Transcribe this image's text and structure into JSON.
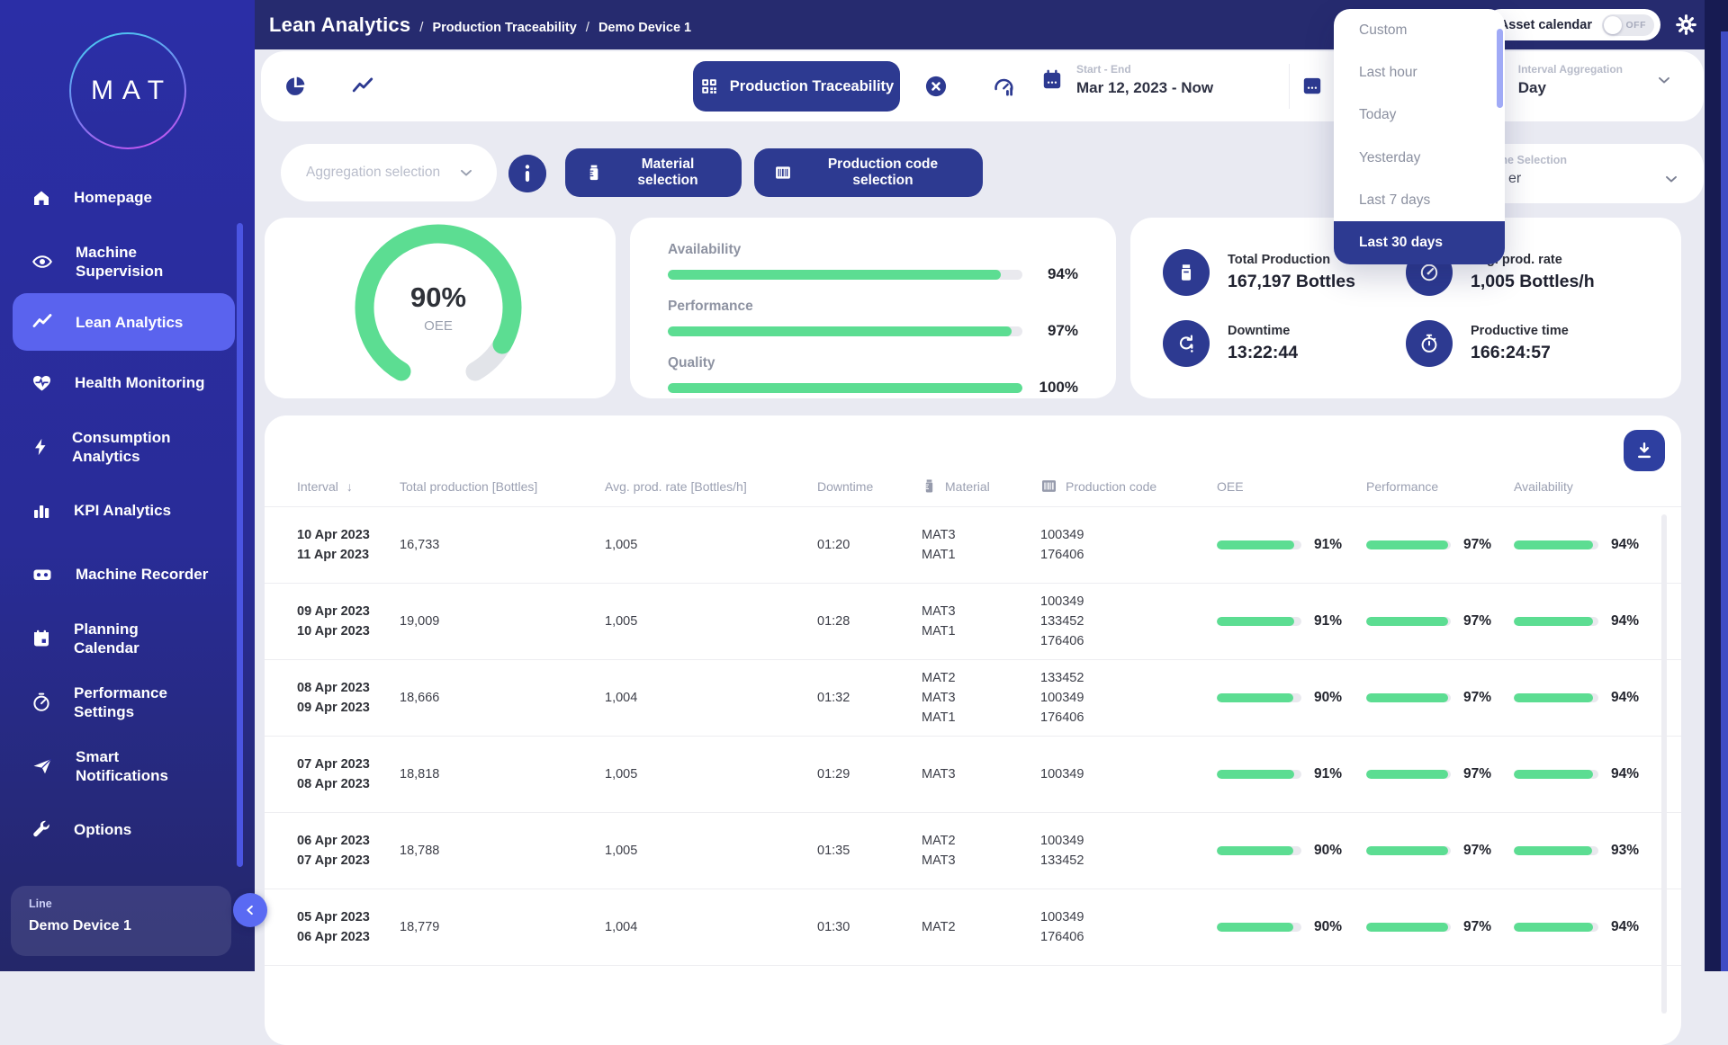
{
  "header": {
    "title": "Lean Analytics",
    "separator": "/",
    "breadcrumbs": [
      "Production Traceability",
      "Demo Device 1"
    ],
    "asset_calendar": {
      "label": "Asset calendar",
      "state": "OFF"
    }
  },
  "sidebar": {
    "logo": "MAT",
    "items": [
      {
        "label": "Homepage",
        "icon": "home-icon",
        "active": false
      },
      {
        "label": "Machine\nSupervision",
        "icon": "eye-icon",
        "active": false
      },
      {
        "label": "Lean Analytics",
        "icon": "trend-icon",
        "active": true
      },
      {
        "label": "Health Monitoring",
        "icon": "heart-pulse-icon",
        "active": false
      },
      {
        "label": "Consumption\nAnalytics",
        "icon": "bolt-icon",
        "active": false
      },
      {
        "label": "KPI Analytics",
        "icon": "bar-chart-icon",
        "active": false
      },
      {
        "label": "Machine Recorder",
        "icon": "recorder-icon",
        "active": false
      },
      {
        "label": "Planning\nCalendar",
        "icon": "calendar-icon",
        "active": false
      },
      {
        "label": "Performance\nSettings",
        "icon": "gauge-icon",
        "active": false
      },
      {
        "label": "Smart\nNotifications",
        "icon": "paper-plane-icon",
        "active": false
      },
      {
        "label": "Options",
        "icon": "wrench-icon",
        "active": false
      }
    ],
    "device_panel": {
      "label": "Line",
      "value": "Demo Device 1"
    }
  },
  "toolbar": {
    "active_tab": "Production Traceability",
    "date_picker": {
      "label": "Start - End",
      "value": "Mar 12, 2023 - Now"
    },
    "interval_aggregation": {
      "label": "Interval Aggregation",
      "value": "Day"
    },
    "aggregation_placeholder": "Aggregation selection",
    "material_button": "Material selection",
    "production_code_button": "Production code selection",
    "machine_selection": {
      "label": "Machine Selection",
      "value_visible": "er"
    }
  },
  "date_range_dropdown": {
    "items": [
      "Custom",
      "Last hour",
      "Today",
      "Yesterday",
      "Last 7 days",
      "Last 30 days"
    ],
    "selected": "Last 30 days"
  },
  "overview": {
    "gauge": {
      "percent": 90,
      "label": "OEE"
    },
    "bars": [
      {
        "label": "Availability",
        "percent": 94
      },
      {
        "label": "Performance",
        "percent": 97
      },
      {
        "label": "Quality",
        "percent": 100
      }
    ],
    "stats": [
      {
        "icon": "bottle-icon",
        "label": "Total Production",
        "value": "167,197 Bottles"
      },
      {
        "icon": "speedometer-icon",
        "label": "Avg. prod. rate",
        "value": "1,005 Bottles/h"
      },
      {
        "icon": "downtime-arrow-icon",
        "label": "Downtime",
        "value": "13:22:44"
      },
      {
        "icon": "stopwatch-icon",
        "label": "Productive time",
        "value": "166:24:57"
      }
    ]
  },
  "table": {
    "headers": {
      "interval": "Interval",
      "total": "Total production [Bottles]",
      "rate": "Avg. prod. rate [Bottles/h]",
      "downtime": "Downtime",
      "material": "Material",
      "production_code": "Production code",
      "oee": "OEE",
      "performance": "Performance",
      "availability": "Availability"
    },
    "sort_icon": "↓",
    "rows": [
      {
        "date_start": "10 Apr 2023",
        "date_end": "11 Apr 2023",
        "total": "16,733",
        "rate": "1,005",
        "downtime": "01:20",
        "materials": [
          "MAT3",
          "MAT1"
        ],
        "codes": [
          "100349",
          "176406"
        ],
        "oee": 91,
        "performance": 97,
        "availability": 94
      },
      {
        "date_start": "09 Apr 2023",
        "date_end": "10 Apr 2023",
        "total": "19,009",
        "rate": "1,005",
        "downtime": "01:28",
        "materials": [
          "MAT3",
          "MAT1"
        ],
        "codes": [
          "100349",
          "133452",
          "176406"
        ],
        "oee": 91,
        "performance": 97,
        "availability": 94
      },
      {
        "date_start": "08 Apr 2023",
        "date_end": "09 Apr 2023",
        "total": "18,666",
        "rate": "1,004",
        "downtime": "01:32",
        "materials": [
          "MAT2",
          "MAT3",
          "MAT1"
        ],
        "codes": [
          "133452",
          "100349",
          "176406"
        ],
        "oee": 90,
        "performance": 97,
        "availability": 94
      },
      {
        "date_start": "07 Apr 2023",
        "date_end": "08 Apr 2023",
        "total": "18,818",
        "rate": "1,005",
        "downtime": "01:29",
        "materials": [
          "MAT3"
        ],
        "codes": [
          "100349"
        ],
        "oee": 91,
        "performance": 97,
        "availability": 94
      },
      {
        "date_start": "06 Apr 2023",
        "date_end": "07 Apr 2023",
        "total": "18,788",
        "rate": "1,005",
        "downtime": "01:35",
        "materials": [
          "MAT2",
          "MAT3"
        ],
        "codes": [
          "100349",
          "133452"
        ],
        "oee": 90,
        "performance": 97,
        "availability": 93
      },
      {
        "date_start": "05 Apr 2023",
        "date_end": "06 Apr 2023",
        "total": "18,779",
        "rate": "1,004",
        "downtime": "01:30",
        "materials": [
          "MAT2"
        ],
        "codes": [
          "100349",
          "176406"
        ],
        "oee": 90,
        "performance": 97,
        "availability": 94
      }
    ]
  },
  "colors": {
    "accent_green": "#5cdd92",
    "navy_button": "#2d3a91",
    "sidebar_active": "#5a63ee",
    "header_navy": "#262b6f"
  }
}
